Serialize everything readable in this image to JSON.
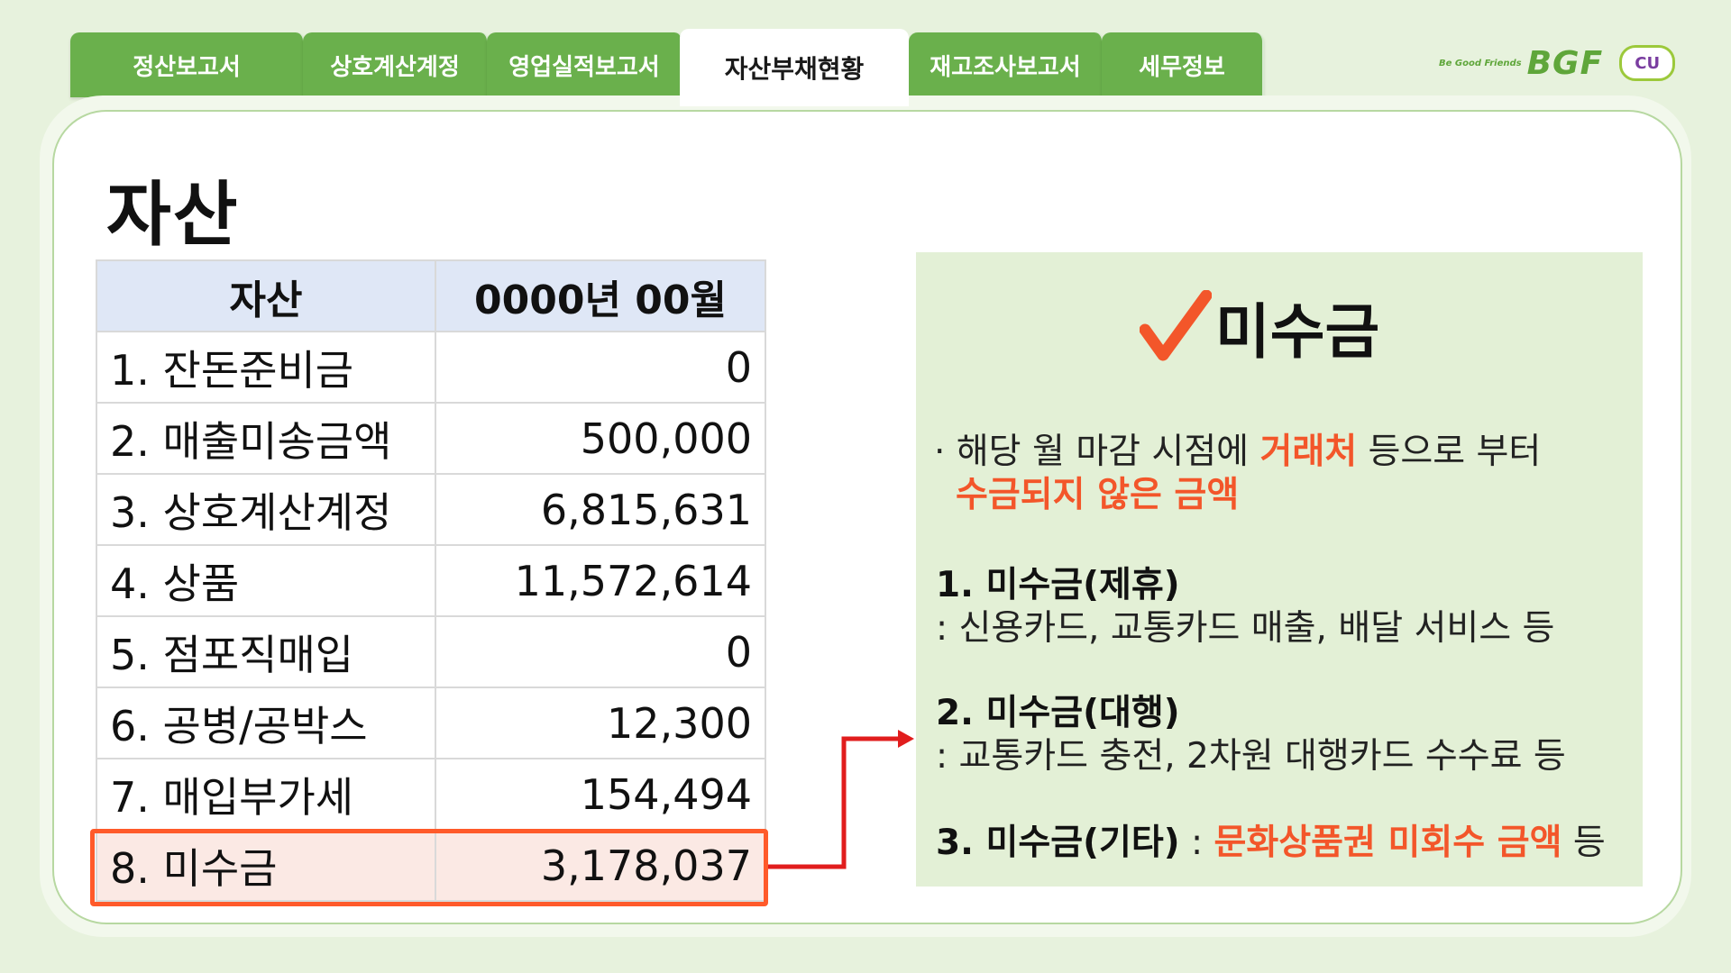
{
  "tabs": [
    {
      "label": "정산보고서"
    },
    {
      "label": "상호계산계정"
    },
    {
      "label": "영업실적보고서"
    },
    {
      "label": "자산부채현황"
    },
    {
      "label": "재고조사보고서"
    },
    {
      "label": "세무정보"
    }
  ],
  "active_tab": "자산부채현황",
  "logo": {
    "tagline": "Be Good Friends",
    "brand": "BGF",
    "badge": "CU"
  },
  "page_title": "자산",
  "table": {
    "headers": [
      "자산",
      "0000년 00월"
    ],
    "rows": [
      {
        "label": "1. 잔돈준비금",
        "value": "0"
      },
      {
        "label": "2. 매출미송금액",
        "value": "500,000"
      },
      {
        "label": "3. 상호계산계정",
        "value": "6,815,631"
      },
      {
        "label": "4. 상품",
        "value": "11,572,614"
      },
      {
        "label": "5. 점포직매입",
        "value": "0"
      },
      {
        "label": "6. 공병/공박스",
        "value": "12,300"
      },
      {
        "label": "7. 매입부가세",
        "value": "154,494"
      },
      {
        "label": "8. 미수금",
        "value": "3,178,037"
      }
    ],
    "highlighted_row": "8. 미수금"
  },
  "info": {
    "check_icon": "checkmark-icon",
    "title": "미수금",
    "desc_prefix": "· 해당 월 마감 시점에 ",
    "desc_hot1": "거래처",
    "desc_mid": " 등으로 부터",
    "desc_hot2": "수금되지 않은 금액",
    "item1_title": "1. 미수금(제휴)",
    "item1_desc": "  : 신용카드, 교통카드 매출, 배달 서비스 등",
    "item2_title": "2. 미수금(대행)",
    "item2_desc": "  : 교통카드 충전, 2차원 대행카드 수수료 등",
    "item3_title": "3. 미수금(기타)",
    "item3_sep": " : ",
    "item3_hot": "문화상품권 미회수 금액",
    "item3_tail": " 등"
  },
  "colors": {
    "tab_green": "#6ab04c",
    "background": "#e7f2dd",
    "info_box": "#e3f0d6",
    "highlight_orange": "#ff5a2a",
    "table_header": "#dfe7f6",
    "arrow_red": "#e11d1d"
  }
}
